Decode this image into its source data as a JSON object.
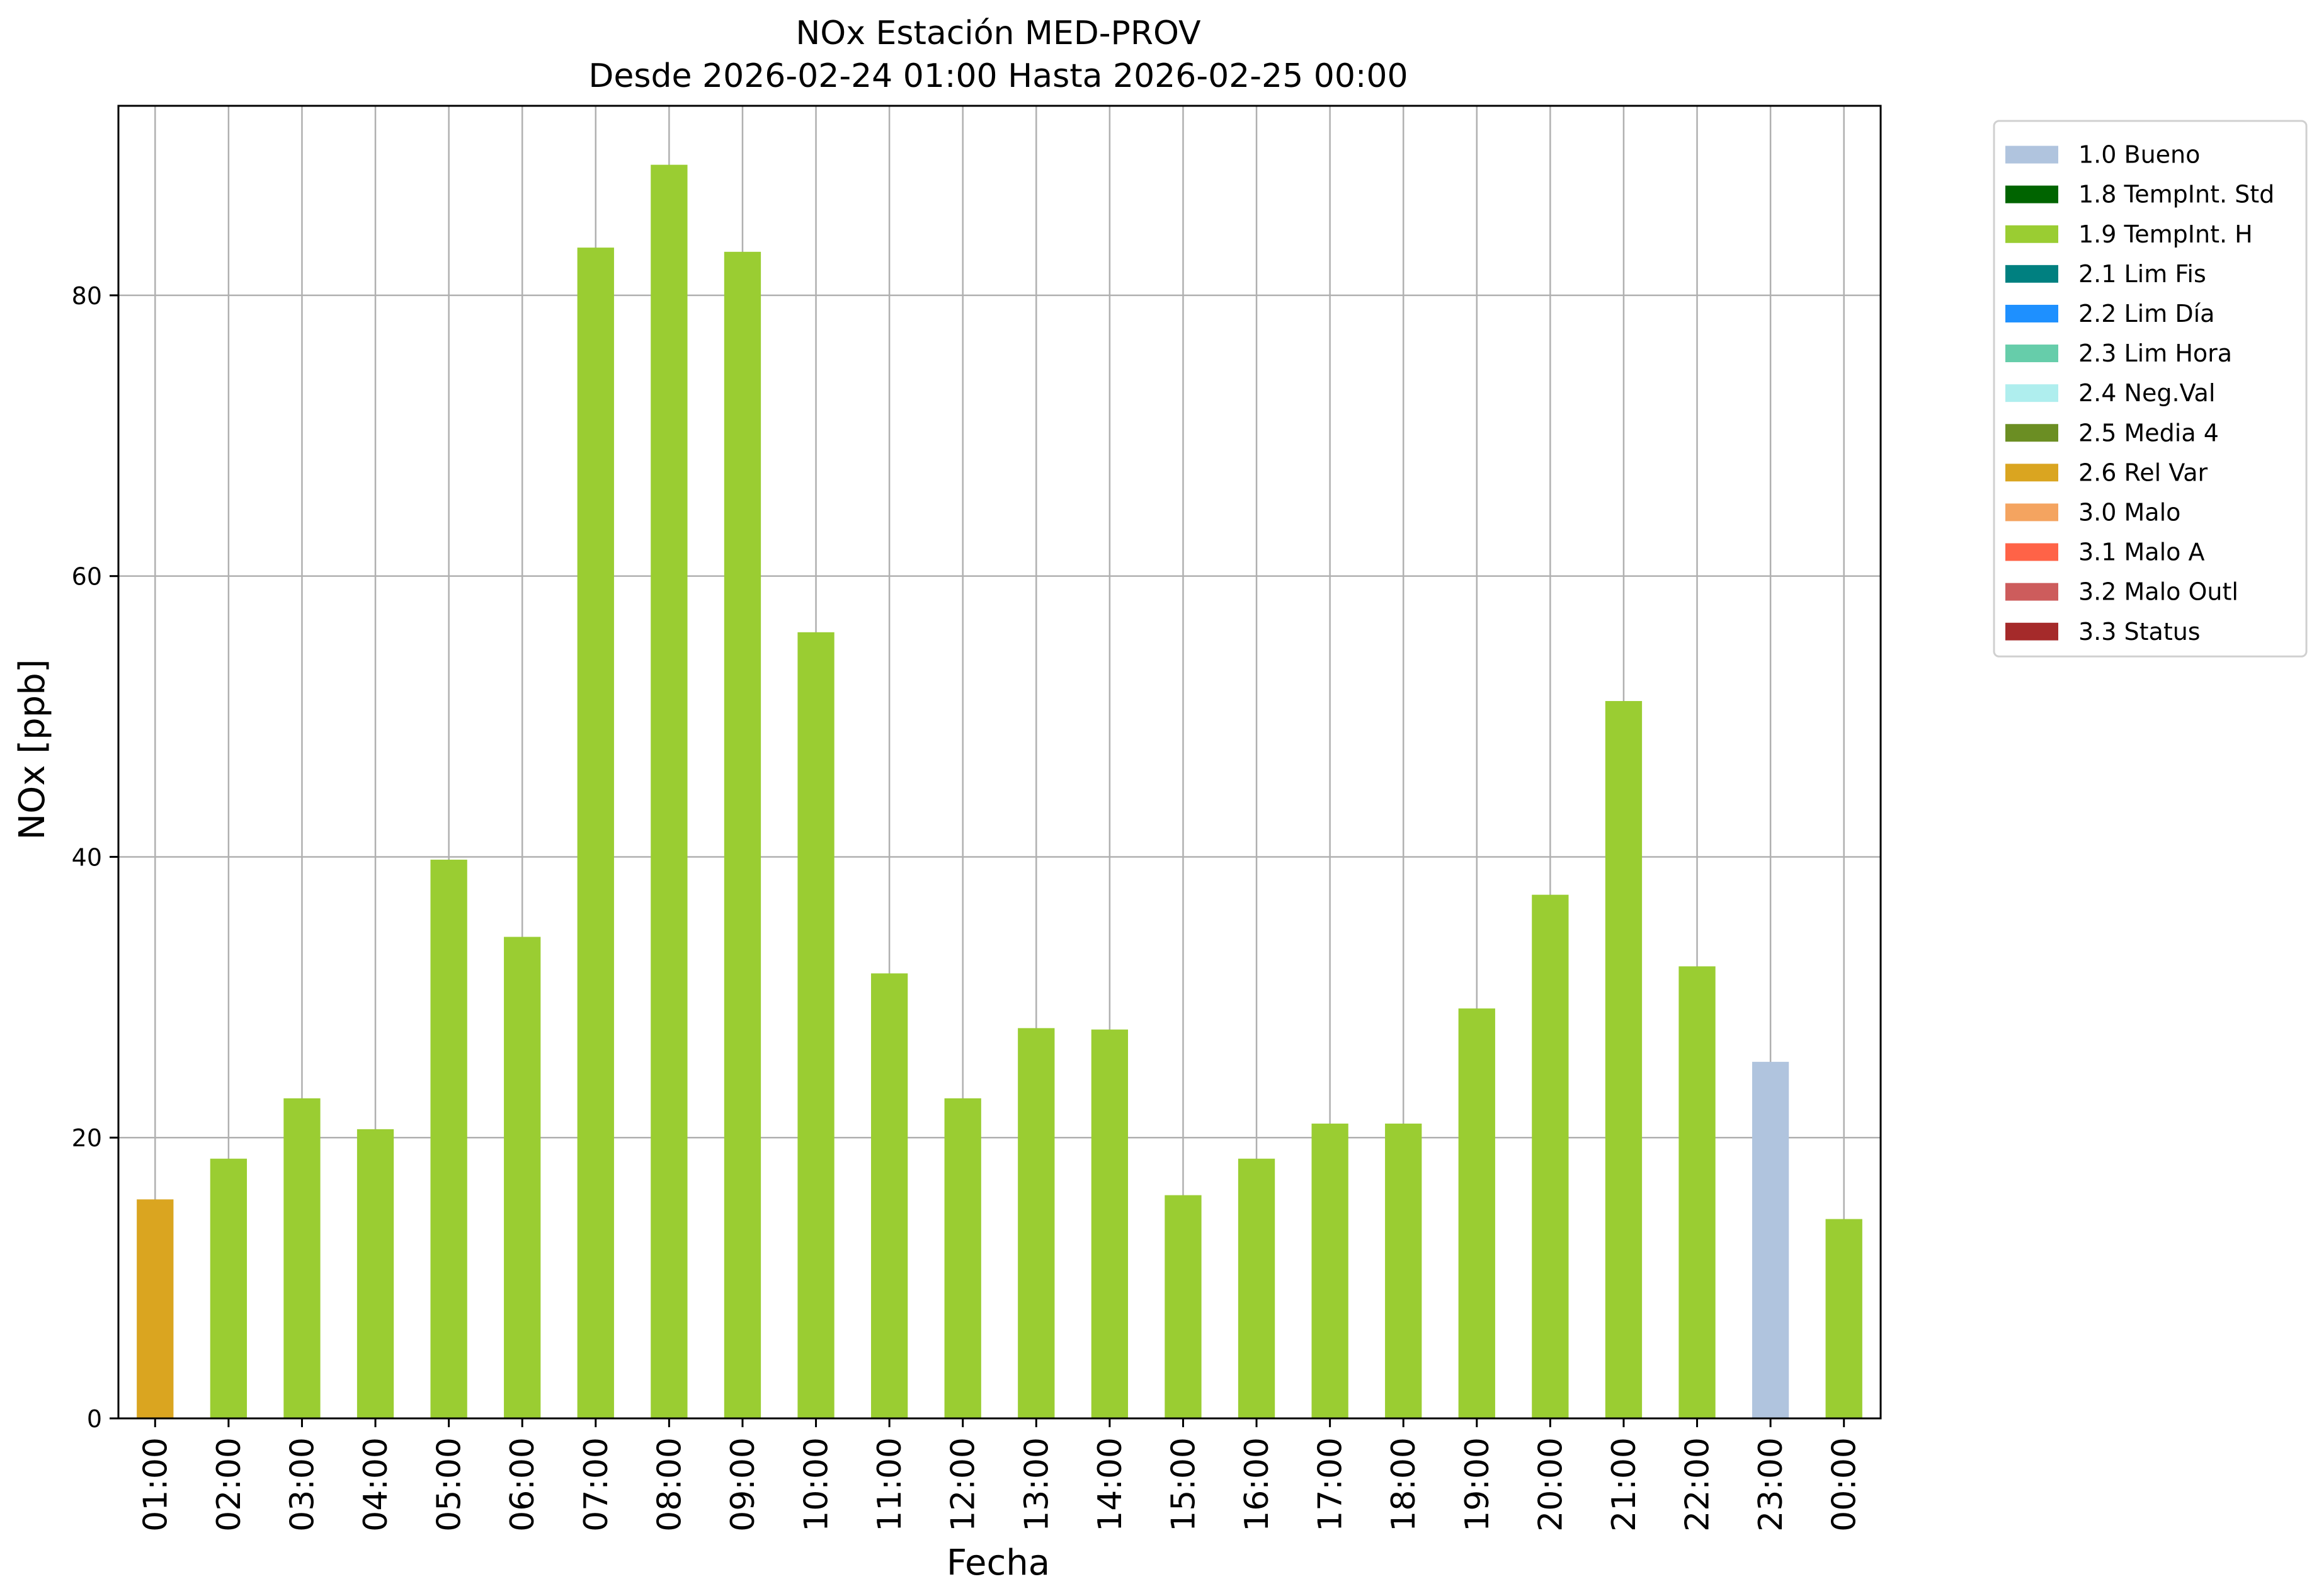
{
  "chart_data": {
    "type": "bar",
    "title": "NOx Estación MED-PROV",
    "subtitle": "Desde 2026-02-24 01:00 Hasta 2026-02-25 00:00",
    "xlabel": "Fecha",
    "ylabel": "NOx [ppb]",
    "ylim": [
      0,
      93.5
    ],
    "yticks": [
      0,
      20,
      40,
      60,
      80
    ],
    "grid": true,
    "legend_position": "outside-top-right",
    "categories": [
      "01:00",
      "02:00",
      "03:00",
      "04:00",
      "05:00",
      "06:00",
      "07:00",
      "08:00",
      "09:00",
      "10:00",
      "11:00",
      "12:00",
      "13:00",
      "14:00",
      "15:00",
      "16:00",
      "17:00",
      "18:00",
      "19:00",
      "20:00",
      "21:00",
      "22:00",
      "23:00",
      "00:00"
    ],
    "values": [
      15.6,
      18.5,
      22.8,
      20.6,
      39.8,
      34.3,
      83.4,
      89.3,
      83.1,
      56.0,
      31.7,
      22.8,
      27.8,
      27.7,
      15.9,
      18.5,
      21.0,
      21.0,
      29.2,
      37.3,
      51.1,
      32.2,
      25.4,
      14.2
    ],
    "bar_flags": [
      "2.6 Rel Var",
      "1.9 TempInt. H",
      "1.9 TempInt. H",
      "1.9 TempInt. H",
      "1.9 TempInt. H",
      "1.9 TempInt. H",
      "1.9 TempInt. H",
      "1.9 TempInt. H",
      "1.9 TempInt. H",
      "1.9 TempInt. H",
      "1.9 TempInt. H",
      "1.9 TempInt. H",
      "1.9 TempInt. H",
      "1.9 TempInt. H",
      "1.9 TempInt. H",
      "1.9 TempInt. H",
      "1.9 TempInt. H",
      "1.9 TempInt. H",
      "1.9 TempInt. H",
      "1.9 TempInt. H",
      "1.9 TempInt. H",
      "1.9 TempInt. H",
      "1.0 Bueno",
      "1.9 TempInt. H"
    ],
    "legend": [
      {
        "label": "1.0 Bueno",
        "color": "#b0c4de"
      },
      {
        "label": "1.8 TempInt. Std",
        "color": "#006400"
      },
      {
        "label": "1.9 TempInt. H",
        "color": "#9acd32"
      },
      {
        "label": "2.1 Lim Fis",
        "color": "#008080"
      },
      {
        "label": "2.2 Lim Día",
        "color": "#1e90ff"
      },
      {
        "label": "2.3 Lim Hora",
        "color": "#66cdaa"
      },
      {
        "label": "2.4 Neg.Val",
        "color": "#afeeee"
      },
      {
        "label": "2.5 Media 4",
        "color": "#6b8e23"
      },
      {
        "label": "2.6 Rel Var",
        "color": "#daa520"
      },
      {
        "label": "3.0 Malo",
        "color": "#f4a460"
      },
      {
        "label": "3.1 Malo A",
        "color": "#ff6347"
      },
      {
        "label": "3.2 Malo Outl",
        "color": "#cd5c5c"
      },
      {
        "label": "3.3 Status",
        "color": "#a52a2a"
      }
    ]
  }
}
